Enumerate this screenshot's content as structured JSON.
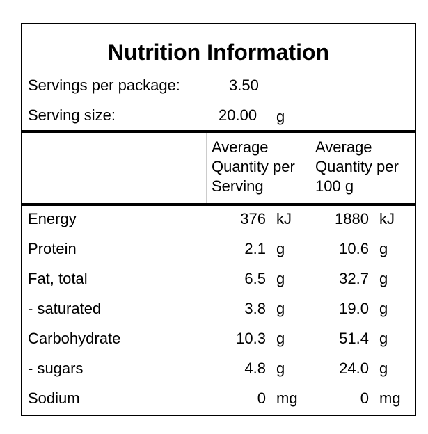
{
  "title": "Nutrition Information",
  "servings_per_package": {
    "label": "Servings per package:",
    "value": "3.50"
  },
  "serving_size": {
    "label": "Serving size:",
    "value": "20.00",
    "unit": "g"
  },
  "columns": [
    {
      "line1": "Average",
      "line2": "Quantity per",
      "line3": "Serving"
    },
    {
      "line1": "Average",
      "line2": "Quantity per",
      "line3": "100 g"
    }
  ],
  "rows": [
    {
      "name": "Energy",
      "per_serving": "376",
      "per_serving_unit": "kJ",
      "per_100g": "1880",
      "per_100g_unit": "kJ"
    },
    {
      "name": "Protein",
      "per_serving": "2.1",
      "per_serving_unit": "g",
      "per_100g": "10.6",
      "per_100g_unit": "g"
    },
    {
      "name": "Fat, total",
      "per_serving": "6.5",
      "per_serving_unit": "g",
      "per_100g": "32.7",
      "per_100g_unit": "g"
    },
    {
      "name": "- saturated",
      "per_serving": "3.8",
      "per_serving_unit": "g",
      "per_100g": "19.0",
      "per_100g_unit": "g"
    },
    {
      "name": "Carbohydrate",
      "per_serving": "10.3",
      "per_serving_unit": "g",
      "per_100g": "51.4",
      "per_100g_unit": "g"
    },
    {
      "name": "- sugars",
      "per_serving": "4.8",
      "per_serving_unit": "g",
      "per_100g": "24.0",
      "per_100g_unit": "g"
    },
    {
      "name": "Sodium",
      "per_serving": "0",
      "per_serving_unit": "mg",
      "per_100g": "0",
      "per_100g_unit": "mg"
    }
  ]
}
